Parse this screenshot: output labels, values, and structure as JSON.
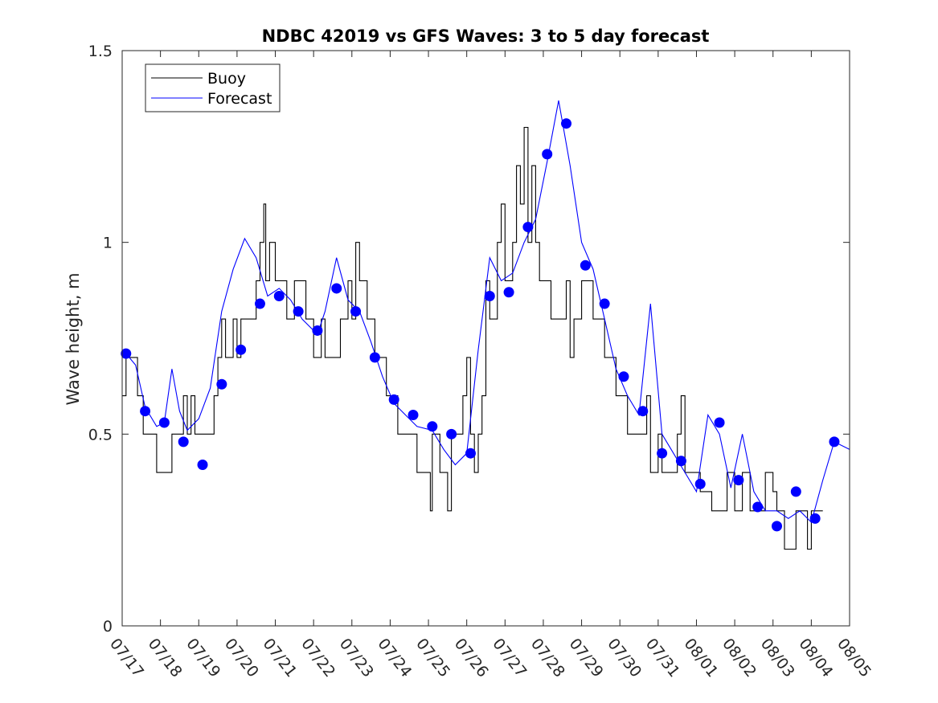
{
  "chart_data": {
    "type": "line",
    "title": "NDBC 42019 vs GFS Waves: 3 to 5 day forecast",
    "xlabel": "",
    "ylabel": "Wave height, m",
    "xlim": [
      0,
      19
    ],
    "ylim": [
      0,
      1.5
    ],
    "x_tick_labels": [
      "07/17",
      "07/18",
      "07/19",
      "07/20",
      "07/21",
      "07/22",
      "07/23",
      "07/24",
      "07/25",
      "07/26",
      "07/27",
      "07/28",
      "07/29",
      "07/30",
      "07/31",
      "08/01",
      "08/02",
      "08/03",
      "08/04",
      "08/05"
    ],
    "y_ticks": [
      0,
      0.5,
      1,
      1.5
    ],
    "y_tick_labels": [
      "0",
      "0.5",
      "1",
      "1.5"
    ],
    "grid": false,
    "legend": {
      "placement": "top-left",
      "entries": [
        "Buoy",
        "Forecast"
      ]
    },
    "colors": {
      "buoy": "#000000",
      "forecast": "#0000ff"
    },
    "series": [
      {
        "name": "Buoy",
        "color": "#000000",
        "style": "step",
        "points": [
          [
            0,
            0.6
          ],
          [
            0.1,
            0.7
          ],
          [
            0.4,
            0.6
          ],
          [
            0.55,
            0.5
          ],
          [
            0.8,
            0.5
          ],
          [
            0.9,
            0.4
          ],
          [
            1.2,
            0.4
          ],
          [
            1.3,
            0.5
          ],
          [
            1.5,
            0.5
          ],
          [
            1.6,
            0.6
          ],
          [
            1.7,
            0.5
          ],
          [
            1.8,
            0.6
          ],
          [
            1.9,
            0.5
          ],
          [
            2.2,
            0.5
          ],
          [
            2.4,
            0.6
          ],
          [
            2.5,
            0.7
          ],
          [
            2.6,
            0.8
          ],
          [
            2.7,
            0.7
          ],
          [
            2.9,
            0.8
          ],
          [
            3.0,
            0.7
          ],
          [
            3.1,
            0.8
          ],
          [
            3.4,
            0.8
          ],
          [
            3.5,
            0.9
          ],
          [
            3.6,
            1.0
          ],
          [
            3.7,
            1.1
          ],
          [
            3.75,
            0.9
          ],
          [
            3.85,
            1.0
          ],
          [
            4.0,
            0.9
          ],
          [
            4.2,
            0.9
          ],
          [
            4.3,
            0.8
          ],
          [
            4.5,
            0.9
          ],
          [
            4.7,
            0.9
          ],
          [
            4.8,
            0.8
          ],
          [
            5.0,
            0.7
          ],
          [
            5.2,
            0.8
          ],
          [
            5.3,
            0.7
          ],
          [
            5.6,
            0.7
          ],
          [
            5.7,
            0.8
          ],
          [
            5.9,
            0.9
          ],
          [
            6.0,
            0.8
          ],
          [
            6.1,
            1.0
          ],
          [
            6.2,
            0.9
          ],
          [
            6.4,
            0.8
          ],
          [
            6.6,
            0.7
          ],
          [
            6.8,
            0.7
          ],
          [
            6.9,
            0.6
          ],
          [
            7.1,
            0.6
          ],
          [
            7.2,
            0.5
          ],
          [
            7.6,
            0.5
          ],
          [
            7.7,
            0.4
          ],
          [
            8.0,
            0.4
          ],
          [
            8.05,
            0.3
          ],
          [
            8.1,
            0.5
          ],
          [
            8.3,
            0.4
          ],
          [
            8.5,
            0.3
          ],
          [
            8.6,
            0.5
          ],
          [
            8.9,
            0.6
          ],
          [
            9.0,
            0.7
          ],
          [
            9.1,
            0.5
          ],
          [
            9.2,
            0.4
          ],
          [
            9.3,
            0.5
          ],
          [
            9.4,
            0.6
          ],
          [
            9.5,
            0.9
          ],
          [
            9.6,
            0.8
          ],
          [
            9.8,
            1.0
          ],
          [
            9.9,
            1.1
          ],
          [
            10.0,
            0.9
          ],
          [
            10.2,
            1.0
          ],
          [
            10.3,
            1.2
          ],
          [
            10.4,
            1.1
          ],
          [
            10.5,
            1.3
          ],
          [
            10.6,
            1.0
          ],
          [
            10.7,
            1.2
          ],
          [
            10.8,
            1.0
          ],
          [
            10.9,
            0.9
          ],
          [
            11.1,
            0.9
          ],
          [
            11.2,
            0.8
          ],
          [
            11.5,
            0.8
          ],
          [
            11.6,
            0.9
          ],
          [
            11.7,
            0.7
          ],
          [
            11.8,
            0.8
          ],
          [
            12.0,
            0.9
          ],
          [
            12.2,
            0.9
          ],
          [
            12.3,
            0.8
          ],
          [
            12.5,
            0.8
          ],
          [
            12.6,
            0.7
          ],
          [
            12.8,
            0.7
          ],
          [
            12.9,
            0.6
          ],
          [
            13.1,
            0.6
          ],
          [
            13.2,
            0.5
          ],
          [
            13.4,
            0.5
          ],
          [
            13.6,
            0.5
          ],
          [
            13.7,
            0.6
          ],
          [
            13.8,
            0.4
          ],
          [
            14.0,
            0.5
          ],
          [
            14.1,
            0.4
          ],
          [
            14.2,
            0.4
          ],
          [
            14.4,
            0.4
          ],
          [
            14.5,
            0.5
          ],
          [
            14.6,
            0.6
          ],
          [
            14.7,
            0.4
          ],
          [
            15.0,
            0.4
          ],
          [
            15.1,
            0.35
          ],
          [
            15.2,
            0.35
          ],
          [
            15.4,
            0.3
          ],
          [
            15.6,
            0.3
          ],
          [
            15.8,
            0.4
          ],
          [
            16.0,
            0.3
          ],
          [
            16.2,
            0.4
          ],
          [
            16.4,
            0.3
          ],
          [
            16.6,
            0.3
          ],
          [
            16.8,
            0.4
          ],
          [
            17.0,
            0.35
          ],
          [
            17.1,
            0.3
          ],
          [
            17.2,
            0.3
          ],
          [
            17.3,
            0.2
          ],
          [
            17.5,
            0.2
          ],
          [
            17.6,
            0.3
          ],
          [
            17.8,
            0.3
          ],
          [
            17.9,
            0.2
          ],
          [
            18.0,
            0.3
          ],
          [
            18.3,
            0.3
          ]
        ]
      },
      {
        "name": "Forecast",
        "color": "#0000ff",
        "style": "line",
        "points": [
          [
            0.1,
            0.71
          ],
          [
            0.35,
            0.68
          ],
          [
            0.6,
            0.57
          ],
          [
            0.9,
            0.52
          ],
          [
            1.1,
            0.53
          ],
          [
            1.3,
            0.67
          ],
          [
            1.5,
            0.56
          ],
          [
            1.7,
            0.51
          ],
          [
            2.0,
            0.54
          ],
          [
            2.3,
            0.62
          ],
          [
            2.6,
            0.82
          ],
          [
            2.9,
            0.93
          ],
          [
            3.2,
            1.01
          ],
          [
            3.5,
            0.96
          ],
          [
            3.8,
            0.86
          ],
          [
            4.1,
            0.88
          ],
          [
            4.4,
            0.85
          ],
          [
            4.7,
            0.8
          ],
          [
            5.1,
            0.76
          ],
          [
            5.3,
            0.82
          ],
          [
            5.6,
            0.96
          ],
          [
            5.9,
            0.85
          ],
          [
            6.2,
            0.82
          ],
          [
            6.5,
            0.74
          ],
          [
            6.8,
            0.65
          ],
          [
            7.1,
            0.58
          ],
          [
            7.4,
            0.55
          ],
          [
            7.7,
            0.52
          ],
          [
            8.1,
            0.51
          ],
          [
            8.4,
            0.46
          ],
          [
            8.7,
            0.42
          ],
          [
            9.0,
            0.45
          ],
          [
            9.3,
            0.72
          ],
          [
            9.6,
            0.96
          ],
          [
            9.9,
            0.9
          ],
          [
            10.2,
            0.92
          ],
          [
            10.5,
            1.0
          ],
          [
            10.8,
            1.06
          ],
          [
            11.1,
            1.21
          ],
          [
            11.4,
            1.37
          ],
          [
            11.7,
            1.2
          ],
          [
            12.0,
            1.0
          ],
          [
            12.3,
            0.93
          ],
          [
            12.6,
            0.8
          ],
          [
            12.9,
            0.67
          ],
          [
            13.2,
            0.6
          ],
          [
            13.5,
            0.55
          ],
          [
            13.8,
            0.84
          ],
          [
            14.1,
            0.5
          ],
          [
            14.4,
            0.45
          ],
          [
            14.7,
            0.4
          ],
          [
            15.0,
            0.35
          ],
          [
            15.3,
            0.55
          ],
          [
            15.6,
            0.5
          ],
          [
            15.9,
            0.36
          ],
          [
            16.2,
            0.5
          ],
          [
            16.5,
            0.35
          ],
          [
            16.8,
            0.3
          ],
          [
            17.1,
            0.3
          ],
          [
            17.4,
            0.28
          ],
          [
            17.7,
            0.3
          ],
          [
            18.0,
            0.27
          ],
          [
            18.3,
            0.38
          ],
          [
            18.6,
            0.48
          ],
          [
            19.0,
            0.46
          ]
        ]
      }
    ],
    "markers": {
      "series": "Forecast",
      "color": "#0000ff",
      "points": [
        [
          0.1,
          0.71
        ],
        [
          0.6,
          0.56
        ],
        [
          1.1,
          0.53
        ],
        [
          1.6,
          0.48
        ],
        [
          2.1,
          0.42
        ],
        [
          2.6,
          0.63
        ],
        [
          3.1,
          0.72
        ],
        [
          3.6,
          0.84
        ],
        [
          4.1,
          0.86
        ],
        [
          4.6,
          0.82
        ],
        [
          5.1,
          0.77
        ],
        [
          5.6,
          0.88
        ],
        [
          6.1,
          0.82
        ],
        [
          6.6,
          0.7
        ],
        [
          7.1,
          0.59
        ],
        [
          7.6,
          0.55
        ],
        [
          8.1,
          0.52
        ],
        [
          8.6,
          0.5
        ],
        [
          9.1,
          0.45
        ],
        [
          9.6,
          0.86
        ],
        [
          10.1,
          0.87
        ],
        [
          10.6,
          1.04
        ],
        [
          11.1,
          1.23
        ],
        [
          11.6,
          1.31
        ],
        [
          12.1,
          0.94
        ],
        [
          12.6,
          0.84
        ],
        [
          13.1,
          0.65
        ],
        [
          13.6,
          0.56
        ],
        [
          14.1,
          0.45
        ],
        [
          14.6,
          0.43
        ],
        [
          15.1,
          0.37
        ],
        [
          15.6,
          0.53
        ],
        [
          16.1,
          0.38
        ],
        [
          16.6,
          0.31
        ],
        [
          17.1,
          0.26
        ],
        [
          17.6,
          0.35
        ],
        [
          18.1,
          0.28
        ],
        [
          18.6,
          0.48
        ]
      ]
    }
  }
}
